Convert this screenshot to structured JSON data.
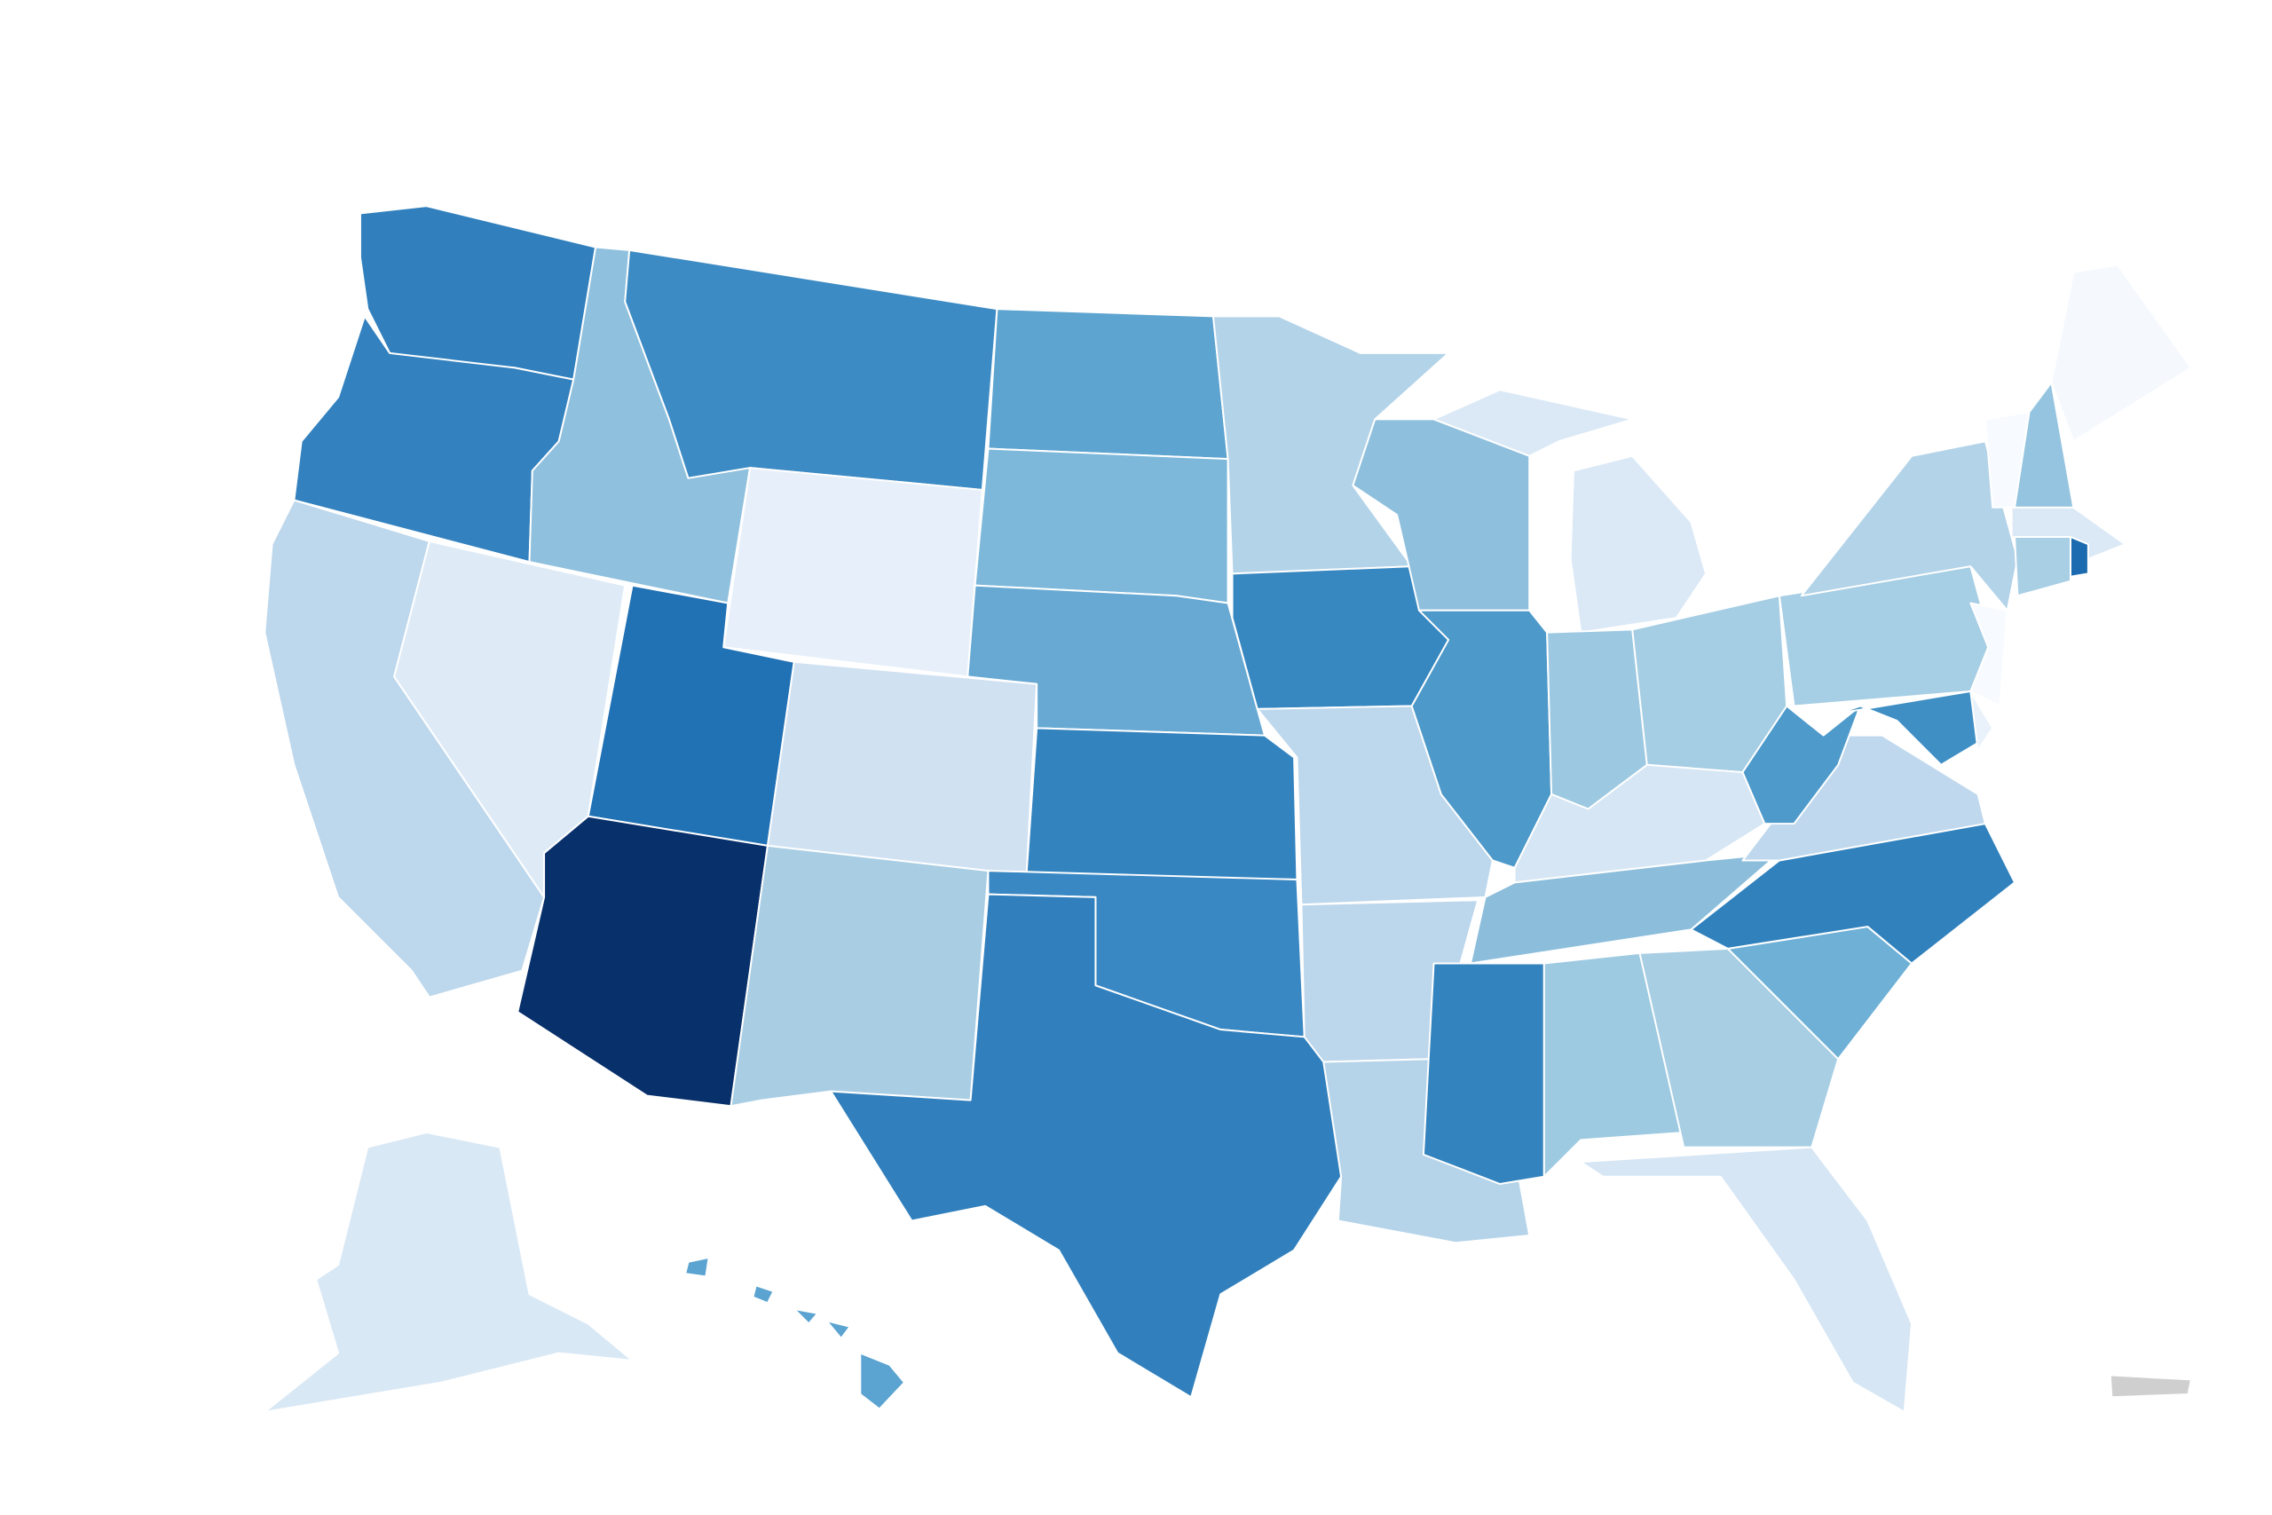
{
  "map": {
    "regions": [
      {
        "color": "#3180bd"
      },
      {
        "color": "#3381be"
      },
      {
        "color": "#bdd7ec"
      },
      {
        "color": "#deebf7"
      },
      {
        "color": "#8fc0de"
      },
      {
        "color": "#3d8bc4"
      },
      {
        "color": "#e7f0fa"
      },
      {
        "color": "#2171b5"
      },
      {
        "color": "#08306b"
      },
      {
        "color": "#d0e1f2"
      },
      {
        "color": "#a9cee4"
      },
      {
        "color": "#5da4d0"
      },
      {
        "color": "#7db8da"
      },
      {
        "color": "#67a9d3"
      },
      {
        "color": "#3383bf"
      },
      {
        "color": "#3a88c3"
      },
      {
        "color": "#3180bd"
      },
      {
        "color": "#b3d3e8"
      },
      {
        "color": "#3787c0"
      },
      {
        "color": "#bdd7ec"
      },
      {
        "color": "#bcd6eb"
      },
      {
        "color": "#b5d4e9"
      },
      {
        "color": "#8ebfdd"
      },
      {
        "color": "#4d99ca"
      },
      {
        "color": "#dbe9f6"
      },
      {
        "color": "#9cc9e1"
      },
      {
        "color": "#a5cde3"
      },
      {
        "color": "#d6e6f4"
      },
      {
        "color": "#8cbedc"
      },
      {
        "color": "#3383be"
      },
      {
        "color": "#9dcae1"
      },
      {
        "color": "#a8cee4"
      },
      {
        "color": "#d6e6f4"
      },
      {
        "color": "#6fb0d7"
      },
      {
        "color": "#3181bd"
      },
      {
        "color": "#bfd8ed"
      },
      {
        "color": "#4e9acb"
      },
      {
        "color": "#a6cee4"
      },
      {
        "color": "#3f8fc5"
      },
      {
        "color": "#e9f2fa"
      },
      {
        "color": "#f7fbff"
      },
      {
        "color": "#b3d3e8"
      },
      {
        "color": "#f7fbff"
      },
      {
        "color": "#94c4df"
      },
      {
        "color": "#f5f9fe"
      },
      {
        "color": "#dbe9f6"
      },
      {
        "color": "#a9cfe5"
      },
      {
        "color": "#1c6aaf"
      },
      {
        "color": "#d9e8f5"
      },
      {
        "color": "#5ba3d0"
      },
      {
        "color": "#cfcfcf"
      }
    ]
  }
}
